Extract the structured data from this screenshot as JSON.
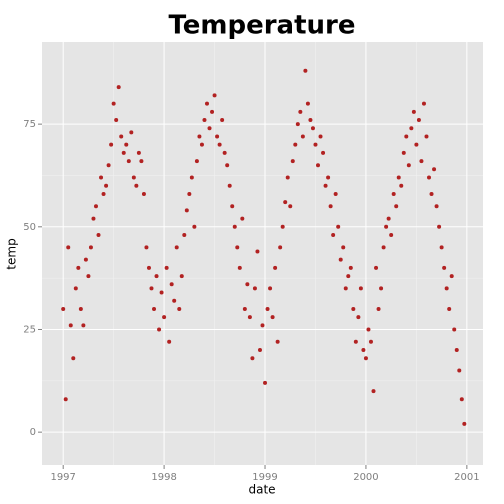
{
  "chart_data": {
    "type": "scatter",
    "title": "Temperature",
    "x_label": "date",
    "y_label": "temp",
    "color": "#b22222",
    "grid": true,
    "xlim": [
      1996.79,
      2001.16
    ],
    "ylim": [
      -8,
      95
    ],
    "xticks": [
      1997,
      1998,
      1999,
      2000,
      2001
    ],
    "yticks": [
      0,
      25,
      50,
      75
    ],
    "x": [
      1997,
      1997.025,
      1997.05,
      1997.075,
      1997.1,
      1997.125,
      1997.15,
      1997.175,
      1997.2,
      1997.225,
      1997.25,
      1997.275,
      1997.3,
      1997.325,
      1997.35,
      1997.375,
      1997.4,
      1997.425,
      1997.45,
      1997.475,
      1997.5,
      1997.525,
      1997.55,
      1997.575,
      1997.6,
      1997.625,
      1997.65,
      1997.675,
      1997.7,
      1997.725,
      1997.75,
      1997.775,
      1997.8,
      1997.825,
      1997.85,
      1997.875,
      1997.9,
      1997.925,
      1997.95,
      1997.975,
      1998,
      1998.025,
      1998.05,
      1998.075,
      1998.1,
      1998.125,
      1998.15,
      1998.175,
      1998.2,
      1998.225,
      1998.25,
      1998.275,
      1998.3,
      1998.325,
      1998.35,
      1998.375,
      1998.4,
      1998.425,
      1998.45,
      1998.475,
      1998.5,
      1998.525,
      1998.55,
      1998.575,
      1998.6,
      1998.625,
      1998.65,
      1998.675,
      1998.7,
      1998.725,
      1998.75,
      1998.775,
      1998.8,
      1998.825,
      1998.85,
      1998.875,
      1998.9,
      1998.925,
      1998.95,
      1998.975,
      1999,
      1999.025,
      1999.05,
      1999.075,
      1999.1,
      1999.125,
      1999.15,
      1999.175,
      1999.2,
      1999.225,
      1999.25,
      1999.275,
      1999.3,
      1999.325,
      1999.35,
      1999.375,
      1999.4,
      1999.425,
      1999.45,
      1999.475,
      1999.5,
      1999.525,
      1999.55,
      1999.575,
      1999.6,
      1999.625,
      1999.65,
      1999.675,
      1999.7,
      1999.725,
      1999.75,
      1999.775,
      1999.8,
      1999.825,
      1999.85,
      1999.875,
      1999.9,
      1999.925,
      1999.95,
      1999.975,
      2000,
      2000.025,
      2000.05,
      2000.075,
      2000.1,
      2000.125,
      2000.15,
      2000.175,
      2000.2,
      2000.225,
      2000.25,
      2000.275,
      2000.3,
      2000.325,
      2000.35,
      2000.375,
      2000.4,
      2000.425,
      2000.45,
      2000.475,
      2000.5,
      2000.525,
      2000.55,
      2000.575,
      2000.6,
      2000.625,
      2000.65,
      2000.675,
      2000.7,
      2000.725,
      2000.75,
      2000.775,
      2000.8,
      2000.825,
      2000.85,
      2000.875,
      2000.9,
      2000.925,
      2000.95,
      2000.975
    ],
    "values": [
      30,
      8,
      45,
      26,
      18,
      35,
      40,
      30,
      26,
      42,
      38,
      45,
      52,
      55,
      48,
      62,
      58,
      60,
      65,
      70,
      80,
      76,
      84,
      72,
      68,
      70,
      66,
      73,
      62,
      60,
      68,
      66,
      58,
      45,
      40,
      35,
      30,
      38,
      25,
      34,
      28,
      40,
      22,
      36,
      32,
      45,
      30,
      38,
      48,
      54,
      58,
      62,
      50,
      66,
      72,
      70,
      76,
      80,
      74,
      78,
      82,
      72,
      70,
      76,
      68,
      65,
      60,
      55,
      50,
      45,
      40,
      52,
      30,
      36,
      28,
      18,
      35,
      44,
      20,
      26,
      12,
      30,
      35,
      28,
      40,
      22,
      45,
      50,
      56,
      62,
      55,
      66,
      70,
      75,
      78,
      72,
      88,
      80,
      76,
      74,
      70,
      65,
      72,
      68,
      60,
      62,
      55,
      48,
      58,
      50,
      42,
      45,
      35,
      38,
      40,
      30,
      22,
      28,
      35,
      20,
      18,
      25,
      22,
      10,
      40,
      30,
      35,
      45,
      50,
      52,
      48,
      58,
      55,
      62,
      60,
      68,
      72,
      65,
      74,
      78,
      70,
      76,
      66,
      80,
      72,
      62,
      58,
      64,
      55,
      50,
      45,
      40,
      35,
      30,
      38,
      25,
      20,
      15,
      8,
      2
    ]
  }
}
